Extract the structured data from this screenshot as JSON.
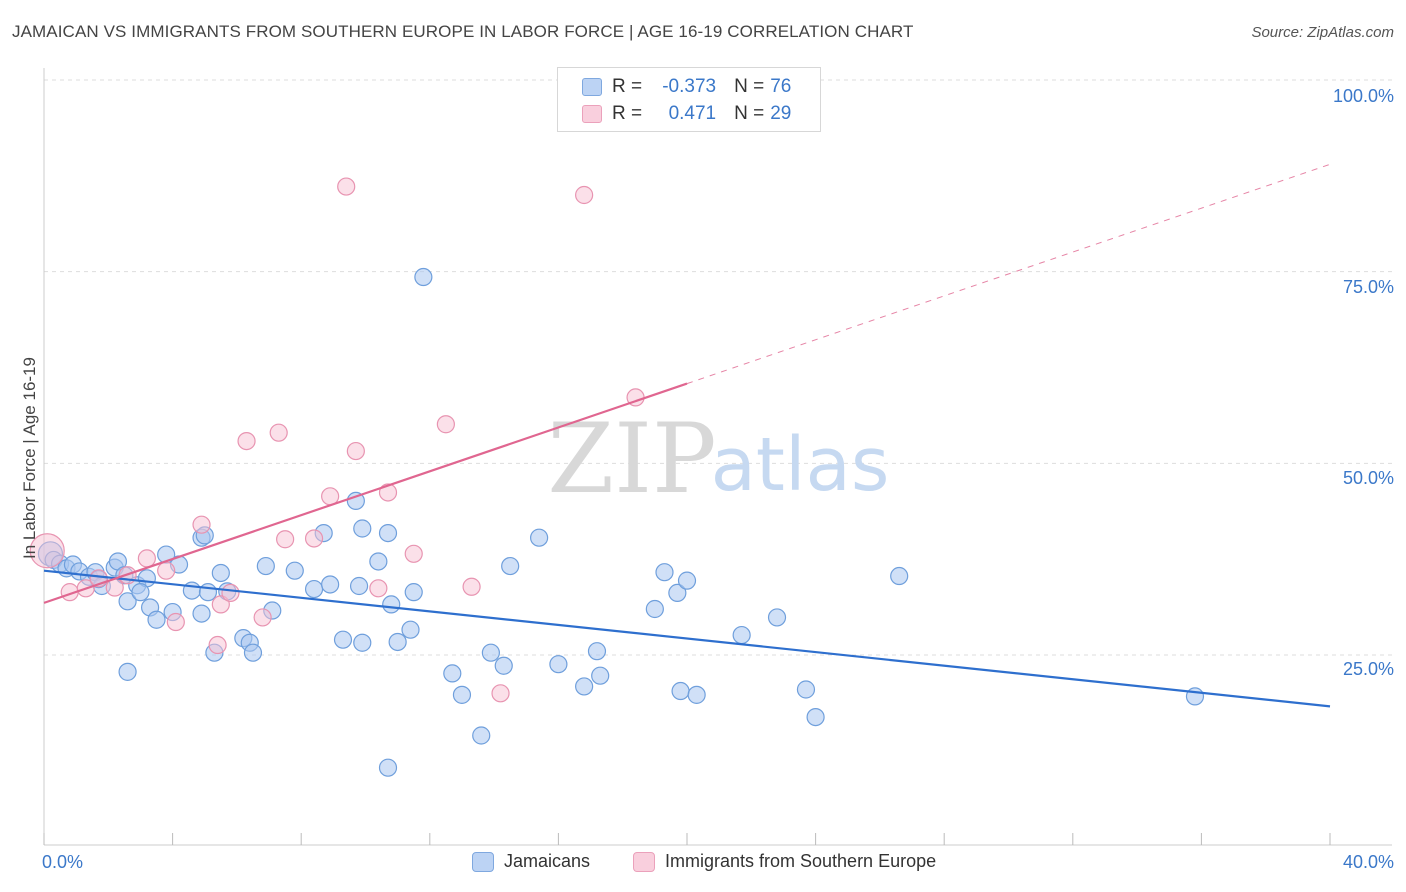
{
  "title": "JAMAICAN VS IMMIGRANTS FROM SOUTHERN EUROPE IN LABOR FORCE | AGE 16-19 CORRELATION CHART",
  "source": "Source: ZipAtlas.com",
  "watermark": {
    "zip": "ZIP",
    "atlas": "atlas"
  },
  "legend_top": {
    "rows": [
      {
        "r_label": "R =",
        "r_value": "-0.373",
        "n_label": "N =",
        "n_value": "76"
      },
      {
        "r_label": "R =",
        "r_value": "0.471",
        "n_label": "N =",
        "n_value": "29"
      }
    ]
  },
  "legend_bottom": {
    "series1": "Jamaicans",
    "series2": "Immigrants from Southern Europe"
  },
  "chart_data": {
    "type": "scatter",
    "title": "JAMAICAN VS IMMIGRANTS FROM SOUTHERN EUROPE IN LABOR FORCE | AGE 16-19 CORRELATION CHART",
    "xlabel": "",
    "ylabel": "In Labor Force | Age 16-19",
    "xlim": [
      0,
      40
    ],
    "ylim": [
      0,
      103
    ],
    "x_tick_labels": [
      "0.0%",
      "40.0%"
    ],
    "y_ticks": [
      25,
      50,
      75,
      100
    ],
    "y_tick_labels": [
      "25.0%",
      "50.0%",
      "75.0%",
      "100.0%"
    ],
    "grid": true,
    "colors": {
      "series1_fill": "#a9c6f0",
      "series1_stroke": "#6f9fdc",
      "series1_line": "#2e6fce",
      "series2_fill": "#f7c2d3",
      "series2_stroke": "#e894b1",
      "series2_line": "#e06690",
      "grid": "#dddddd",
      "axis_text": "#3b78c9"
    },
    "series": [
      {
        "name": "Jamaicans",
        "R": -0.373,
        "N": 76,
        "trend": {
          "x": [
            0,
            40
          ],
          "y": [
            36.0,
            18.3
          ]
        },
        "points": [
          [
            0.2,
            38.2
          ],
          [
            0.3,
            37.4
          ],
          [
            0.5,
            36.9
          ],
          [
            0.7,
            36.3
          ],
          [
            0.9,
            36.8
          ],
          [
            1.1,
            35.9
          ],
          [
            1.4,
            35.2
          ],
          [
            1.6,
            35.8
          ],
          [
            2.2,
            36.4
          ],
          [
            1.8,
            34.0
          ],
          [
            2.3,
            37.2
          ],
          [
            2.5,
            35.4
          ],
          [
            2.9,
            34.1
          ],
          [
            3.2,
            35.0
          ],
          [
            3.8,
            38.1
          ],
          [
            2.6,
            32.0
          ],
          [
            3.0,
            33.2
          ],
          [
            3.3,
            31.2
          ],
          [
            3.5,
            29.6
          ],
          [
            4.0,
            30.6
          ],
          [
            4.2,
            36.8
          ],
          [
            4.6,
            33.4
          ],
          [
            4.9,
            30.4
          ],
          [
            5.1,
            33.2
          ],
          [
            5.5,
            35.7
          ],
          [
            5.7,
            33.3
          ],
          [
            6.2,
            27.2
          ],
          [
            6.4,
            26.6
          ],
          [
            6.5,
            25.3
          ],
          [
            5.3,
            25.3
          ],
          [
            6.9,
            36.6
          ],
          [
            7.1,
            30.8
          ],
          [
            7.8,
            36.0
          ],
          [
            8.4,
            33.6
          ],
          [
            8.7,
            40.9
          ],
          [
            9.3,
            27.0
          ],
          [
            9.8,
            34.0
          ],
          [
            9.9,
            26.6
          ],
          [
            10.4,
            37.2
          ],
          [
            10.8,
            31.6
          ],
          [
            11.0,
            26.7
          ],
          [
            11.4,
            28.3
          ],
          [
            11.5,
            33.2
          ],
          [
            12.7,
            22.6
          ],
          [
            13.0,
            19.8
          ],
          [
            13.9,
            25.3
          ],
          [
            14.3,
            23.6
          ],
          [
            14.5,
            36.6
          ],
          [
            15.4,
            40.3
          ],
          [
            16.0,
            23.8
          ],
          [
            16.8,
            20.9
          ],
          [
            17.2,
            25.5
          ],
          [
            17.3,
            22.3
          ],
          [
            19.0,
            31.0
          ],
          [
            19.3,
            35.8
          ],
          [
            19.7,
            33.1
          ],
          [
            20.0,
            34.7
          ],
          [
            19.8,
            20.3
          ],
          [
            20.3,
            19.8
          ],
          [
            21.7,
            27.6
          ],
          [
            22.8,
            29.9
          ],
          [
            23.7,
            20.5
          ],
          [
            24.0,
            16.9
          ],
          [
            26.6,
            35.3
          ],
          [
            35.8,
            19.6
          ],
          [
            2.6,
            22.8
          ],
          [
            4.9,
            40.3
          ],
          [
            5.0,
            40.6
          ],
          [
            8.9,
            34.2
          ],
          [
            9.9,
            41.5
          ],
          [
            10.7,
            40.9
          ],
          [
            1.7,
            34.9
          ],
          [
            10.7,
            10.3
          ],
          [
            13.6,
            14.5
          ],
          [
            11.8,
            74.3
          ],
          [
            9.7,
            45.1
          ]
        ]
      },
      {
        "name": "Immigrants from Southern Europe",
        "R": 0.471,
        "N": 29,
        "trend": {
          "x": [
            0,
            20.0
          ],
          "y": [
            31.8,
            60.4
          ]
        },
        "trend_dashed": {
          "x": [
            20.0,
            40
          ],
          "y": [
            60.4,
            89.0
          ]
        },
        "points": [
          [
            0.1,
            38.6
          ],
          [
            0.8,
            33.2
          ],
          [
            1.3,
            33.7
          ],
          [
            1.7,
            35.0
          ],
          [
            2.2,
            33.8
          ],
          [
            2.6,
            35.4
          ],
          [
            3.2,
            37.6
          ],
          [
            3.8,
            36.0
          ],
          [
            4.1,
            29.3
          ],
          [
            4.9,
            42.0
          ],
          [
            5.4,
            26.3
          ],
          [
            5.5,
            31.6
          ],
          [
            5.8,
            33.1
          ],
          [
            6.3,
            52.9
          ],
          [
            6.8,
            29.9
          ],
          [
            7.3,
            54.0
          ],
          [
            7.5,
            40.1
          ],
          [
            8.4,
            40.2
          ],
          [
            8.9,
            45.7
          ],
          [
            9.4,
            86.1
          ],
          [
            9.7,
            51.6
          ],
          [
            10.4,
            33.7
          ],
          [
            10.7,
            46.2
          ],
          [
            11.5,
            38.2
          ],
          [
            12.5,
            55.1
          ],
          [
            13.3,
            33.9
          ],
          [
            14.2,
            20.0
          ],
          [
            16.8,
            85.0
          ],
          [
            18.4,
            58.6
          ]
        ]
      }
    ]
  }
}
